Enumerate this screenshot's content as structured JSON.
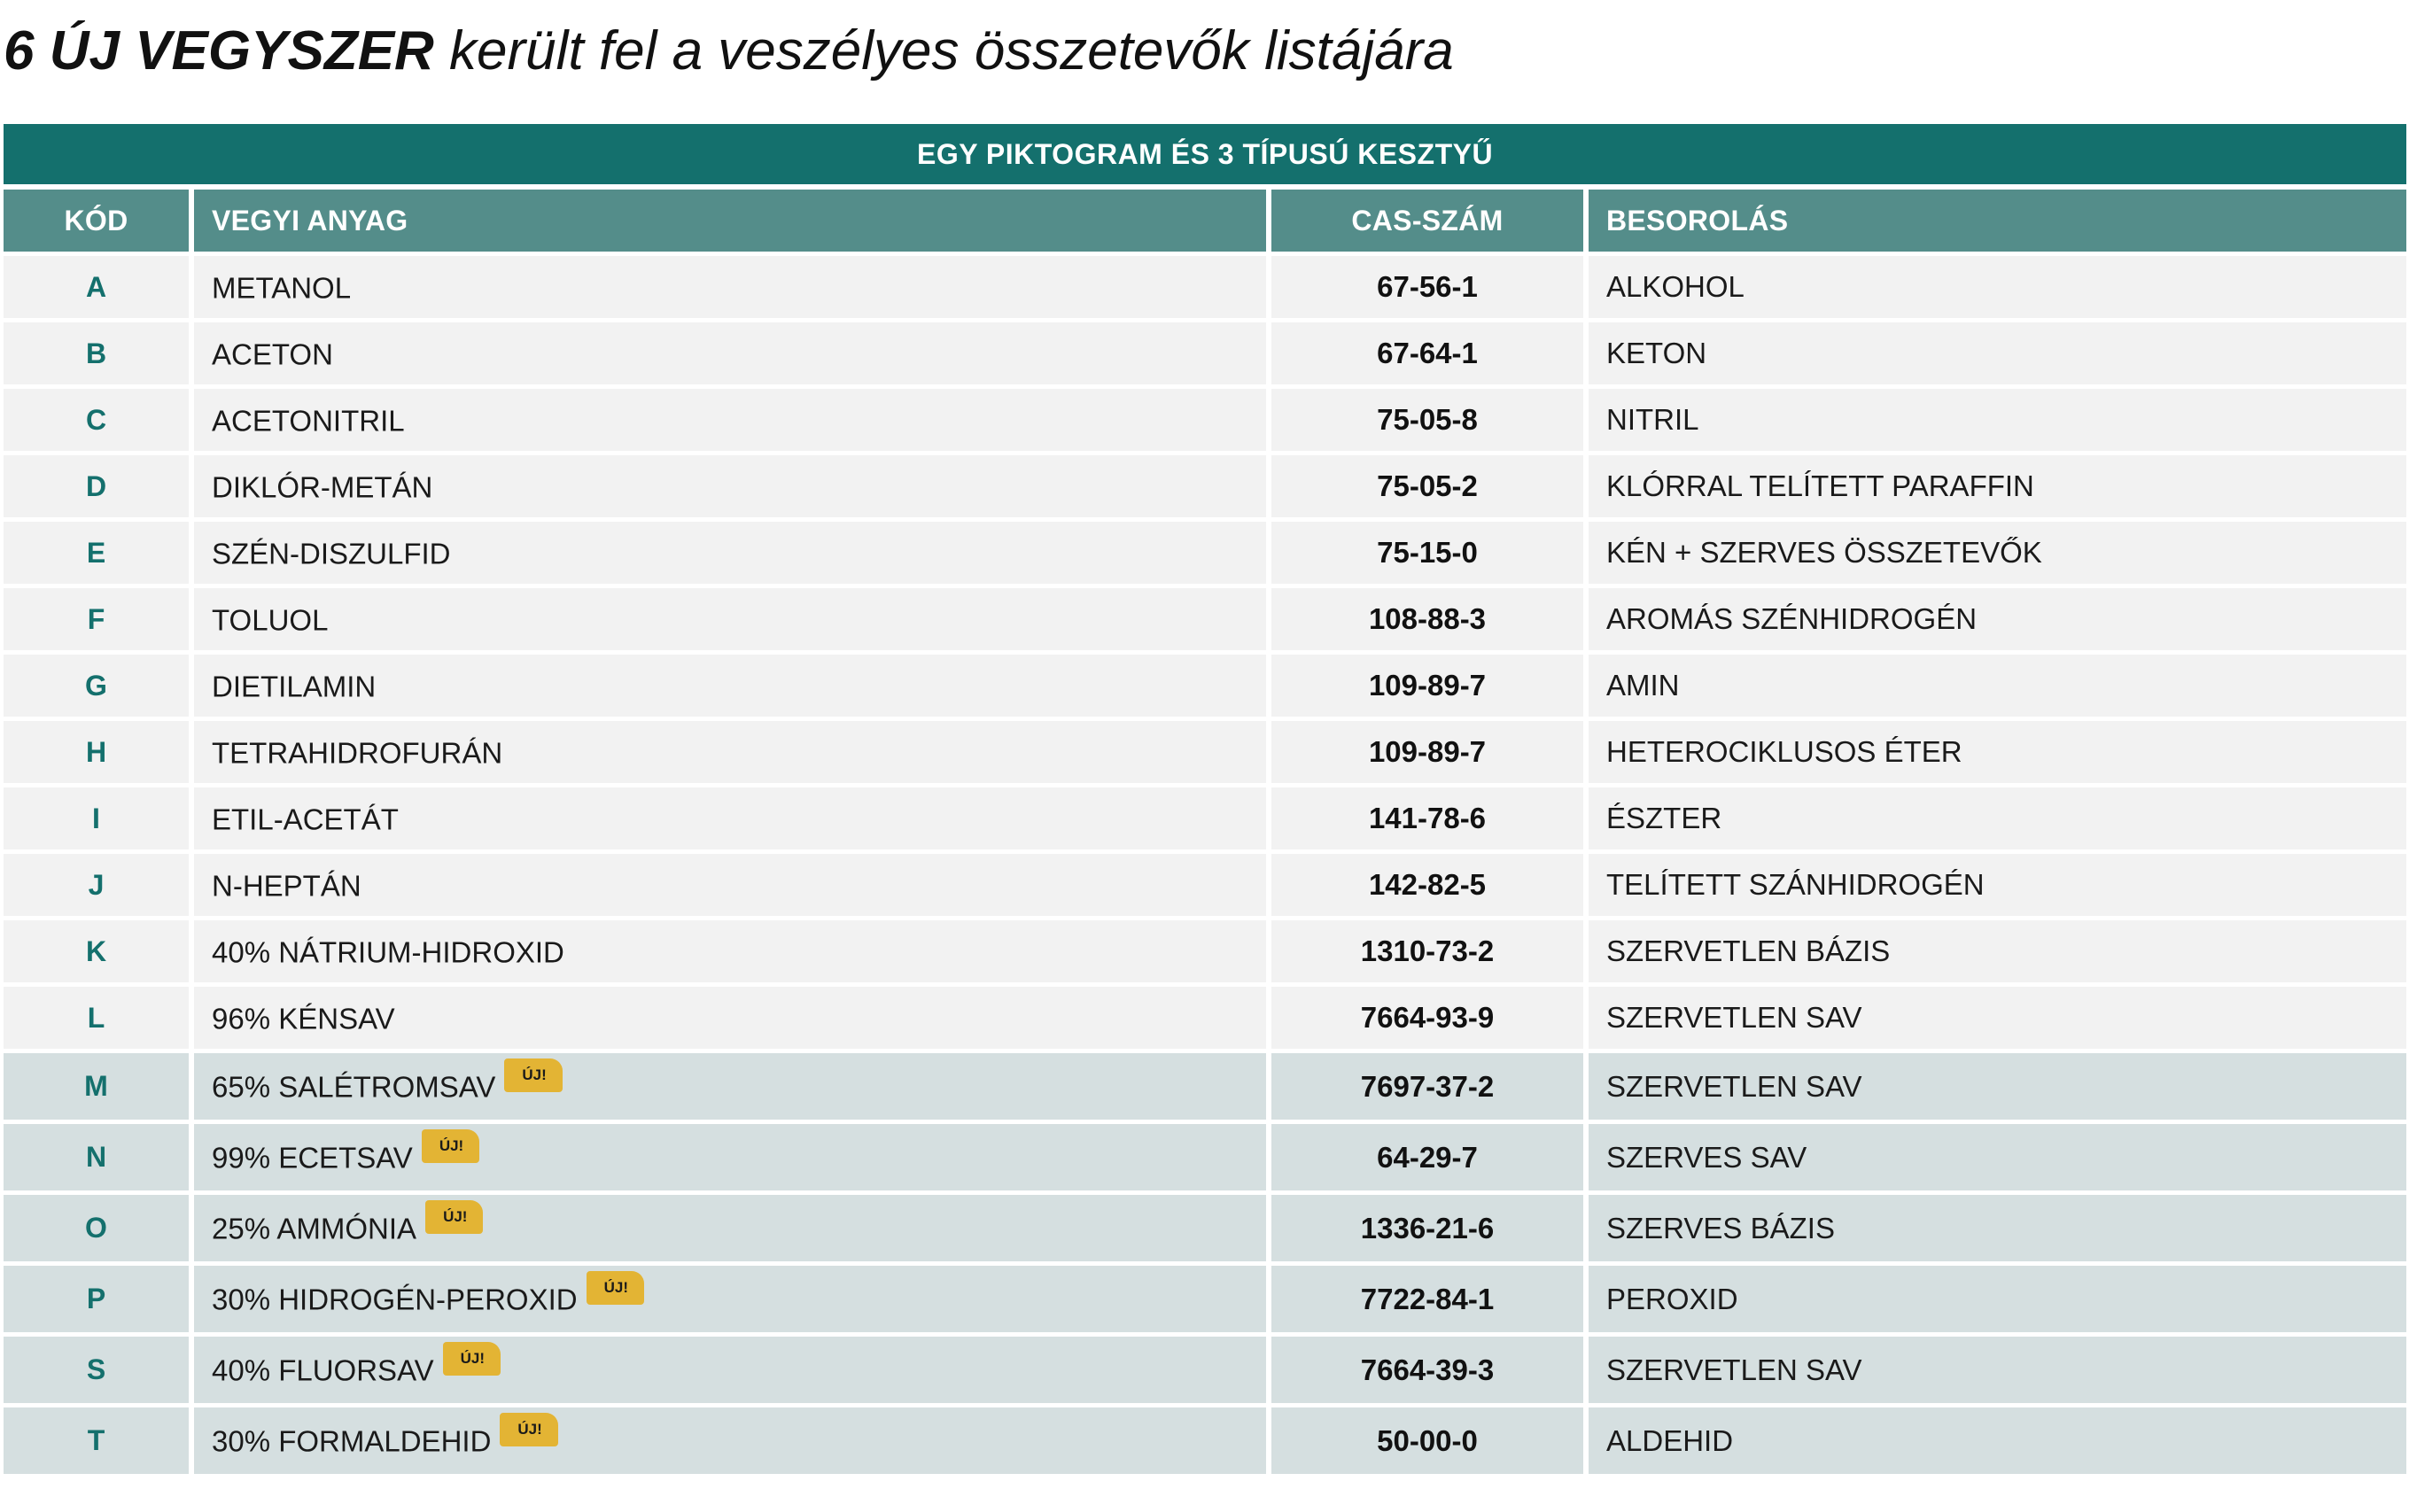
{
  "title": {
    "strong": "6 ÚJ VEGYSZER",
    "rest": " került fel a veszélyes összetevők listájára"
  },
  "table": {
    "banner": "EGY PIKTOGRAM ÉS 3 TÍPUSÚ KESZTYŰ",
    "headers": {
      "code": "KÓD",
      "name": "VEGYI ANYAG",
      "cas": "CAS-SZÁM",
      "class": "BESOROLÁS"
    },
    "new_badge": "ÚJ!",
    "highlight_color": "#d5dfe0",
    "accent_color": "#14706d",
    "badge_color": "#e3b434",
    "rows": [
      {
        "code": "A",
        "name": "METANOL",
        "cas": "67-56-1",
        "class": "ALKOHOL",
        "new": false
      },
      {
        "code": "B",
        "name": "ACETON",
        "cas": "67-64-1",
        "class": "KETON",
        "new": false
      },
      {
        "code": "C",
        "name": "ACETONITRIL",
        "cas": "75-05-8",
        "class": "NITRIL",
        "new": false
      },
      {
        "code": "D",
        "name": "DIKLÓR-METÁN",
        "cas": "75-05-2",
        "class": "KLÓRRAL TELÍTETT PARAFFIN",
        "new": false
      },
      {
        "code": "E",
        "name": "SZÉN-DISZULFID",
        "cas": "75-15-0",
        "class": "KÉN + SZERVES ÖSSZETEVŐK",
        "new": false
      },
      {
        "code": "F",
        "name": "TOLUOL",
        "cas": "108-88-3",
        "class": "AROMÁS SZÉNHIDROGÉN",
        "new": false
      },
      {
        "code": "G",
        "name": "DIETILAMIN",
        "cas": "109-89-7",
        "class": "AMIN",
        "new": false
      },
      {
        "code": "H",
        "name": "TETRAHIDROFURÁN",
        "cas": "109-89-7",
        "class": "HETEROCIKLUSOS ÉTER",
        "new": false
      },
      {
        "code": "I",
        "name": "ETIL-ACETÁT",
        "cas": "141-78-6",
        "class": "ÉSZTER",
        "new": false
      },
      {
        "code": "J",
        "name": "N-HEPTÁN",
        "cas": "142-82-5",
        "class": "TELÍTETT SZÁNHIDROGÉN",
        "new": false
      },
      {
        "code": "K",
        "name": "40% NÁTRIUM-HIDROXID",
        "cas": "1310-73-2",
        "class": "SZERVETLEN BÁZIS",
        "new": false
      },
      {
        "code": "L",
        "name": "96% KÉNSAV",
        "cas": "7664-93-9",
        "class": "SZERVETLEN SAV",
        "new": false
      },
      {
        "code": "M",
        "name": "65% SALÉTROMSAV",
        "cas": "7697-37-2",
        "class": "SZERVETLEN SAV",
        "new": true
      },
      {
        "code": "N",
        "name": "99% ECETSAV",
        "cas": "64-29-7",
        "class": "SZERVES SAV",
        "new": true
      },
      {
        "code": "O",
        "name": "25% AMMÓNIA",
        "cas": "1336-21-6",
        "class": "SZERVES BÁZIS",
        "new": true
      },
      {
        "code": "P",
        "name": "30% HIDROGÉN-PEROXID",
        "cas": "7722-84-1",
        "class": "PEROXID",
        "new": true
      },
      {
        "code": "S",
        "name": "40% FLUORSAV",
        "cas": "7664-39-3",
        "class": "SZERVETLEN SAV",
        "new": true
      },
      {
        "code": "T",
        "name": "30% FORMALDEHID",
        "cas": "50-00-0",
        "class": "ALDEHID",
        "new": true
      }
    ]
  }
}
